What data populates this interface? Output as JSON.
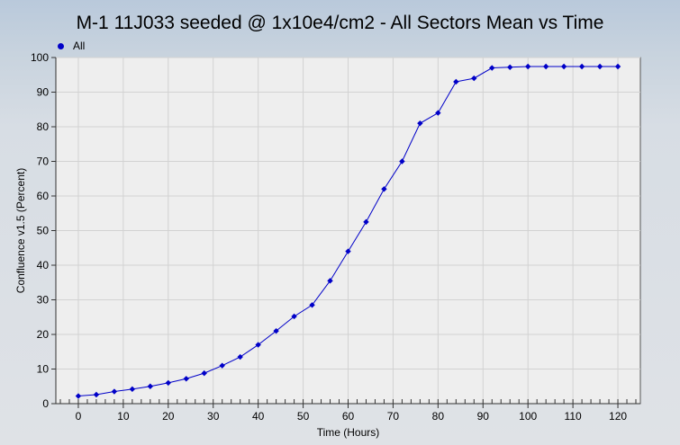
{
  "chart_data": {
    "type": "line",
    "title": "M-1  11J033 seeded @ 1x10e4/cm2 - All Sectors Mean vs Time",
    "xlabel": "Time (Hours)",
    "ylabel": "Confluence v1.5 (Percent)",
    "xlim": [
      -5,
      125
    ],
    "ylim": [
      0,
      100
    ],
    "xticks": [
      0,
      10,
      20,
      30,
      40,
      50,
      60,
      70,
      80,
      90,
      100,
      110,
      120
    ],
    "yticks": [
      0,
      10,
      20,
      30,
      40,
      50,
      60,
      70,
      80,
      90,
      100
    ],
    "grid": true,
    "legend": "top-left",
    "series": [
      {
        "name": "All",
        "color": "#0000c8",
        "x": [
          0,
          4,
          8,
          12,
          16,
          20,
          24,
          28,
          32,
          36,
          40,
          44,
          48,
          52,
          56,
          60,
          64,
          68,
          72,
          76,
          80,
          84,
          88,
          92,
          96,
          100,
          104,
          108,
          112,
          116,
          120
        ],
        "y": [
          2.2,
          2.6,
          3.5,
          4.2,
          5.0,
          6.0,
          7.2,
          8.8,
          11.0,
          13.5,
          17.0,
          21.0,
          25.2,
          28.5,
          35.5,
          44.0,
          52.5,
          62.0,
          70.0,
          81.0,
          84.0,
          93.0,
          94.0,
          97.0,
          97.2,
          97.4,
          97.4,
          97.4,
          97.4,
          97.4,
          97.4
        ]
      }
    ]
  }
}
